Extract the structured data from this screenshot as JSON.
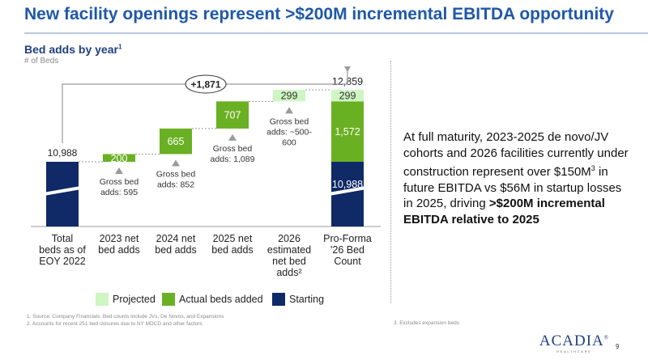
{
  "title": "New facility openings represent >$200M incremental EBITDA opportunity",
  "subtitle": "Bed adds by year",
  "subtitle_sup": "1",
  "units_note": "# of Beds",
  "colors": {
    "starting": "#0f2a66",
    "actual": "#6ab023",
    "projected": "#cff5c3",
    "title_blue": "#1f58a8"
  },
  "chart_data": {
    "type": "bar",
    "subtype": "waterfall",
    "categories": [
      [
        "Total",
        "beds as of",
        "EOY 2022"
      ],
      [
        "2023 net",
        "bed adds"
      ],
      [
        "2024 net",
        "bed adds"
      ],
      [
        "2025 net",
        "bed adds"
      ],
      [
        "2026",
        "estimated",
        "net bed",
        "adds²"
      ],
      [
        "Pro-Forma",
        "'26 Bed",
        "Count"
      ]
    ],
    "starting_value": 10988,
    "steps": [
      {
        "value": 200,
        "label": "200",
        "kind": "actual",
        "note": [
          "Gross bed",
          "adds: 595"
        ]
      },
      {
        "value": 665,
        "label": "665",
        "kind": "actual",
        "note": [
          "Gross bed",
          "adds: 852"
        ]
      },
      {
        "value": 707,
        "label": "707",
        "kind": "actual",
        "note": [
          "Gross bed",
          "adds: 1,089"
        ]
      },
      {
        "value": 299,
        "label": "299",
        "kind": "projected",
        "note": [
          "Gross bed",
          "adds: ~500-",
          "600"
        ]
      }
    ],
    "total": {
      "value": 12859,
      "label": "12,859",
      "segments": [
        {
          "value": 10988,
          "label": "10,988",
          "kind": "starting"
        },
        {
          "value": 1572,
          "label": "1,572",
          "kind": "actual"
        },
        {
          "value": 299,
          "label": "299",
          "kind": "projected"
        }
      ]
    },
    "start_label": "10,988",
    "delta_label": "+1,871",
    "axis_break": true,
    "legend": [
      "Projected",
      "Actual beds added",
      "Starting"
    ],
    "legend_placement": "bottom"
  },
  "legend": {
    "projected": "Projected",
    "actual": "Actual beds added",
    "starting": "Starting"
  },
  "side_text": {
    "part1": "At full maturity, 2023-2025 de novo/JV cohorts and 2026 facilities currently under construction represent over $150M",
    "sup": "3",
    "part2": " in future EBITDA vs $56M in startup losses in 2025, driving ",
    "bold": ">$200M incremental EBITDA relative to 2025"
  },
  "footnotes": {
    "f1": "1.    Source: Company Financials. Bed counts include JVs, De Novos, and Expansions",
    "f2": "2.    Accounts for recent 251 bed closures due to NY MDCD and other factors",
    "f3": "3.    Excludes expansion beds"
  },
  "logo": {
    "word": "ACADIA",
    "mark": "®",
    "sub": "HEALTHCARE"
  },
  "page_number": "9"
}
